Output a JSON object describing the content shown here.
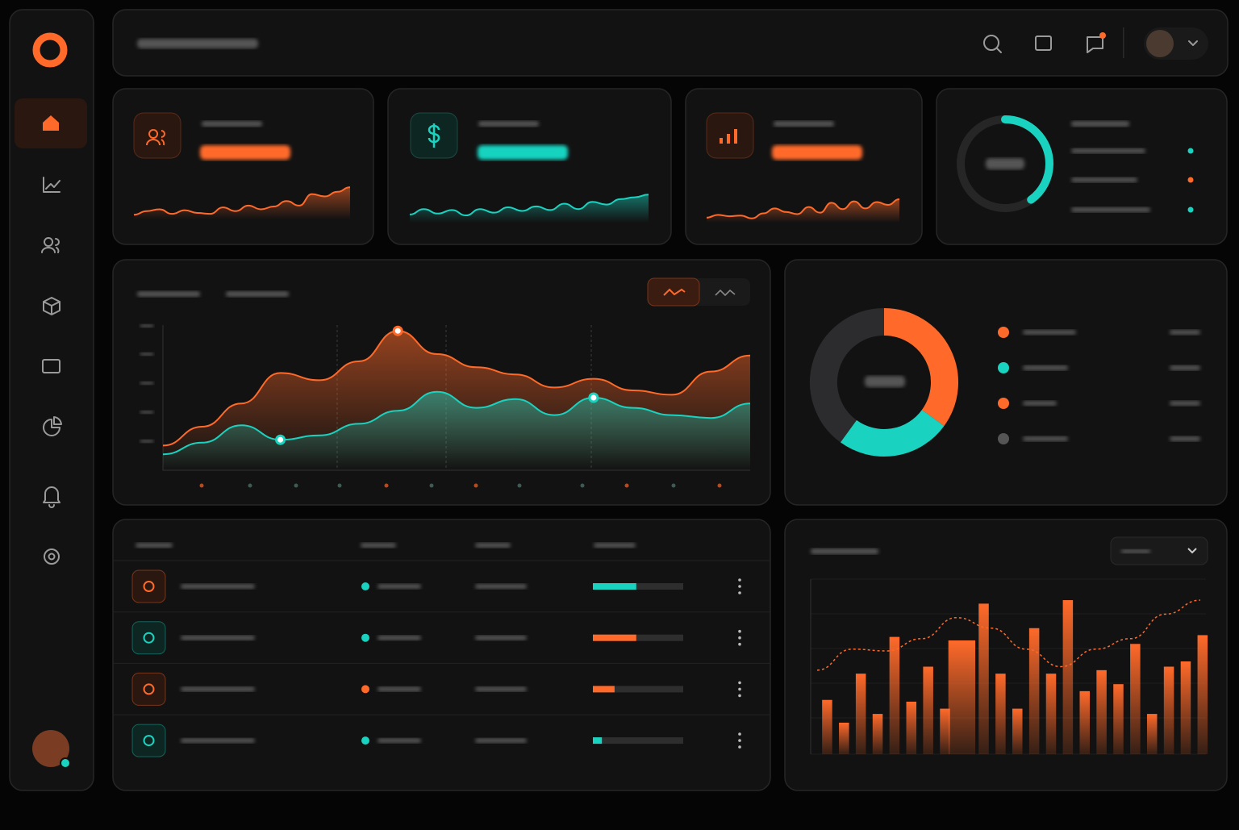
{
  "sparklines": [
    {
      "color": "#ff6a2a",
      "ylim": [
        0,
        100
      ],
      "values": [
        10,
        18,
        22,
        12,
        20,
        14,
        12,
        26,
        18,
        30,
        22,
        28,
        40,
        30,
        55,
        50,
        60,
        70
      ]
    },
    {
      "color": "#19d3c0",
      "ylim": [
        0,
        100
      ],
      "values": [
        18,
        30,
        20,
        28,
        16,
        30,
        22,
        34,
        26,
        36,
        28,
        42,
        30,
        46,
        40,
        52,
        56,
        62
      ]
    },
    {
      "color": "#ff6a2a",
      "ylim": [
        0,
        100
      ],
      "values": [
        14,
        22,
        18,
        20,
        12,
        26,
        40,
        30,
        24,
        44,
        28,
        56,
        38,
        60,
        40,
        58,
        50,
        66
      ]
    }
  ],
  "gauge": {
    "value": 40,
    "ylim": [
      0,
      100
    ],
    "color": "#19d3c0"
  },
  "area_chart": {
    "type": "line",
    "ylim": [
      0,
      100
    ],
    "series": [
      {
        "color": "#ff6a2a",
        "values": [
          17,
          30,
          46,
          67,
          62,
          75,
          96,
          80,
          71,
          66,
          57,
          63,
          55,
          52,
          68,
          79
        ]
      },
      {
        "color": "#19d3c0",
        "values": [
          11,
          19,
          31,
          21,
          24,
          32,
          41,
          54,
          43,
          49,
          38,
          50,
          43,
          38,
          36,
          46
        ]
      }
    ]
  },
  "donut": {
    "type": "pie",
    "values": [
      35,
      25,
      40
    ],
    "colors": [
      "#ff6a2a",
      "#19d3c0",
      "#2c2c2e"
    ]
  },
  "table": {
    "rows": [
      {
        "progress": 48,
        "color": "#19d3c0"
      },
      {
        "progress": 48,
        "color": "#ff6a2a"
      },
      {
        "progress": 24,
        "color": "#ff6a2a"
      },
      {
        "progress": 10,
        "color": "#19d3c0"
      }
    ]
  },
  "bar_chart": {
    "type": "bar",
    "ylim": [
      0,
      100
    ],
    "color": "#ff6a2a",
    "values": [
      31,
      18,
      46,
      23,
      67,
      30,
      50,
      26,
      65,
      86,
      46,
      26,
      72,
      46,
      88,
      36,
      48,
      40,
      63,
      23,
      50,
      53,
      68
    ],
    "line": [
      48,
      60,
      59,
      66,
      78,
      72,
      60,
      50,
      60,
      66,
      80,
      88
    ]
  }
}
